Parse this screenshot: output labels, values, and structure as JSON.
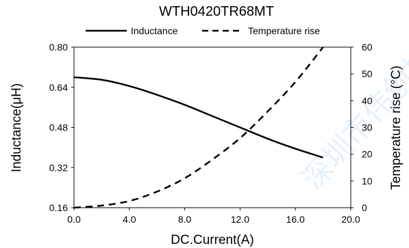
{
  "chart_data": {
    "type": "line",
    "title": "WTH0420TR68MT",
    "xlabel": "DC.Current(A)",
    "ylabel_left": "Inductance(μH)",
    "ylabel_right": "Temperature rise (°C)",
    "xlim": [
      0,
      20
    ],
    "ylim_left": [
      0.16,
      0.8
    ],
    "ylim_right": [
      0,
      60
    ],
    "x_ticks": [
      "0.0",
      "4.0",
      "8.0",
      "12.0",
      "16.0",
      "20.0"
    ],
    "y_left_ticks": [
      "0.16",
      "0.32",
      "0.48",
      "0.64",
      "0.80"
    ],
    "y_right_ticks": [
      "0",
      "10",
      "20",
      "30",
      "40",
      "50",
      "60"
    ],
    "grid": false,
    "legend_position": "top",
    "series": [
      {
        "name": "Inductance",
        "axis": "left",
        "style": "solid",
        "x": [
          0,
          2,
          4,
          6,
          8,
          10,
          12,
          14,
          16,
          18
        ],
        "y": [
          0.68,
          0.67,
          0.645,
          0.61,
          0.57,
          0.525,
          0.48,
          0.435,
          0.395,
          0.36
        ]
      },
      {
        "name": "Temperature rise",
        "axis": "right",
        "style": "dashed",
        "x": [
          0,
          2,
          4,
          6,
          8,
          10,
          12,
          14,
          16,
          18
        ],
        "y": [
          0,
          0.8,
          2.5,
          6,
          11,
          18,
          26,
          36,
          47,
          60
        ]
      }
    ]
  },
  "watermark": "深圳市伟创技术",
  "colors": {
    "line": "#000000",
    "axis": "#000000",
    "watermark": "#cfe6f7"
  }
}
